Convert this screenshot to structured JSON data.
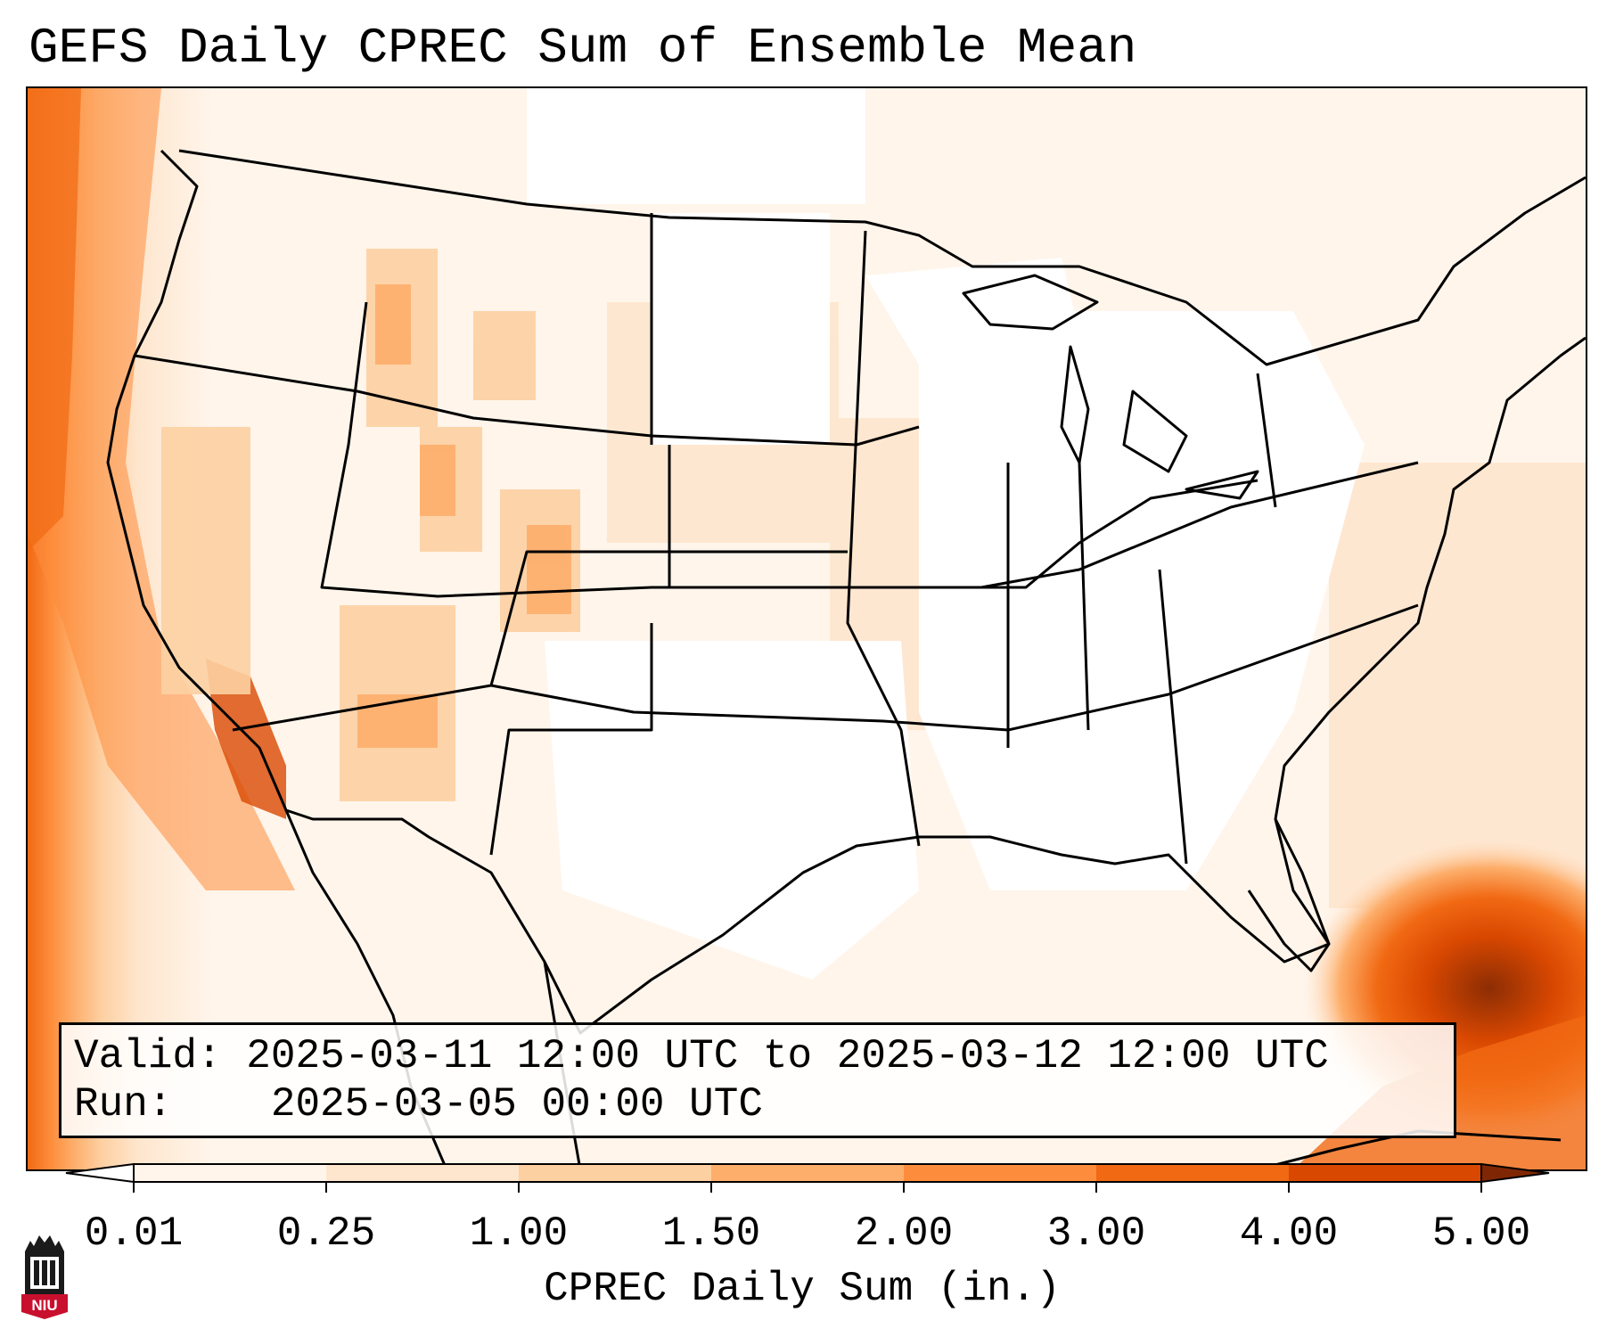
{
  "title": "GEFS Daily CPREC Sum of Ensemble Mean",
  "info": {
    "valid_label": "Valid:",
    "valid_value": "2025-03-11 12:00 UTC to 2025-03-12 12:00 UTC",
    "run_label": "Run:",
    "run_value": "2025-03-05 00:00 UTC"
  },
  "colorbar": {
    "label": "CPREC Daily Sum (in.)",
    "ticks": [
      "0.01",
      "0.25",
      "1.00",
      "1.50",
      "2.00",
      "3.00",
      "4.00",
      "5.00"
    ],
    "colors": [
      "#fff5eb",
      "#fee6ce",
      "#fdd0a2",
      "#fdae6b",
      "#fd8d3c",
      "#f16913",
      "#d94801",
      "#8c2d04"
    ],
    "under_color": "#ffffff",
    "over_color": "#7f2704"
  },
  "logo": {
    "text": "NIU",
    "colors": {
      "red": "#c8102e",
      "black": "#1a1a1a"
    }
  },
  "icons": {
    "logo": "niu-tower-logo-icon"
  }
}
